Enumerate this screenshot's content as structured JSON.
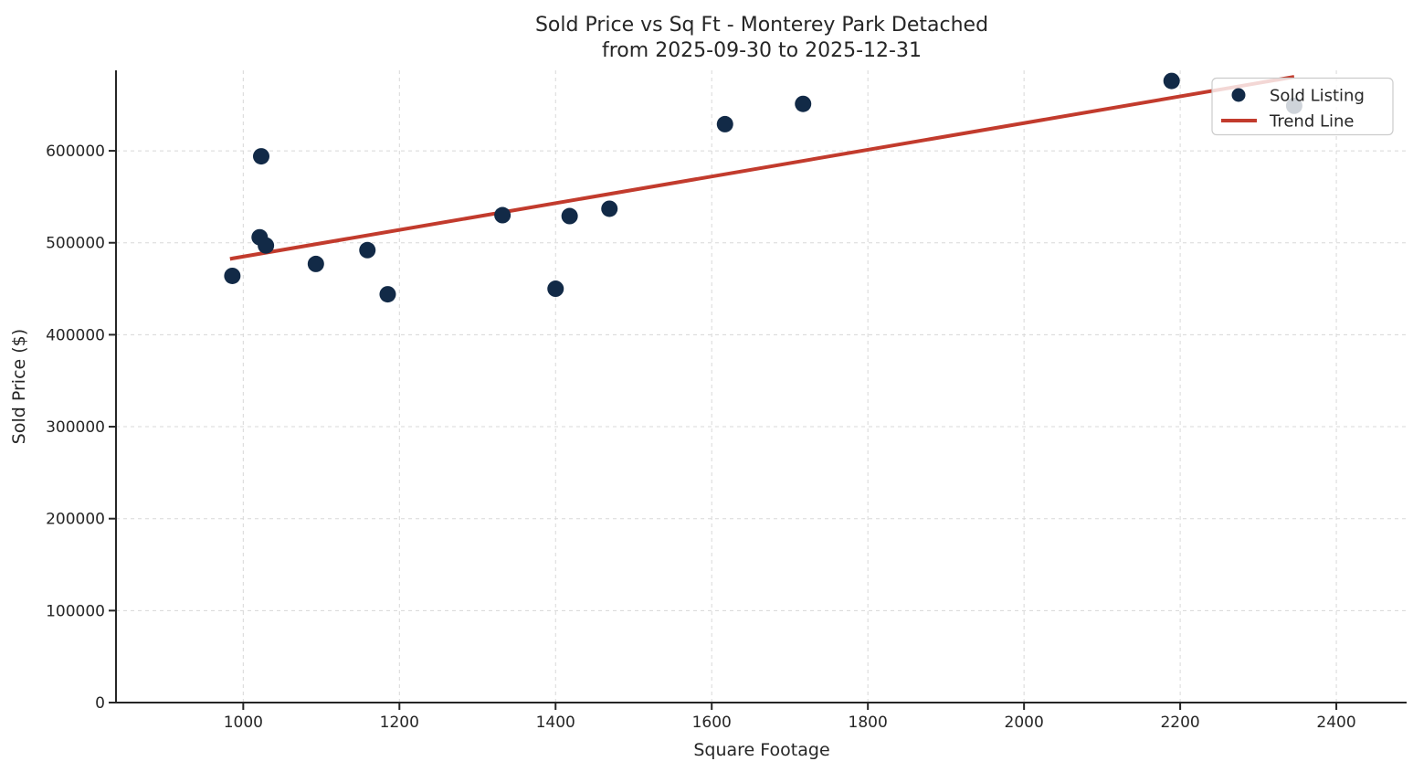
{
  "chart_data": {
    "type": "scatter",
    "title": "Sold Price vs Sq Ft - Monterey Park Detached",
    "subtitle": "from 2025-09-30 to 2025-12-31",
    "xlabel": "Square Footage",
    "ylabel": "Sold Price ($)",
    "xlim": [
      837,
      2490
    ],
    "ylim": [
      0,
      687500
    ],
    "x_ticks": [
      1000,
      1200,
      1400,
      1600,
      1800,
      2000,
      2200,
      2400
    ],
    "y_ticks": [
      0,
      100000,
      200000,
      300000,
      400000,
      500000,
      600000
    ],
    "grid": true,
    "grid_style": "dashed",
    "legend_position": "upper right",
    "series": [
      {
        "name": "Sold Listing",
        "type": "scatter",
        "color": "#122a47",
        "marker_radius": 9,
        "points": [
          [
            986,
            464000
          ],
          [
            1023,
            594000
          ],
          [
            1021,
            506000
          ],
          [
            1029,
            497000
          ],
          [
            1093,
            477000
          ],
          [
            1159,
            492000
          ],
          [
            1185,
            444000
          ],
          [
            1332,
            530000
          ],
          [
            1400,
            450000
          ],
          [
            1418,
            529000
          ],
          [
            1469,
            537000
          ],
          [
            1617,
            629000
          ],
          [
            1717,
            651000
          ],
          [
            2189,
            676000
          ],
          [
            2346,
            649000
          ]
        ]
      },
      {
        "name": "Trend Line",
        "type": "line",
        "color": "#c23b2d",
        "line_width": 4,
        "points": [
          [
            983,
            482500
          ],
          [
            2346,
            680400
          ]
        ]
      }
    ],
    "legend": {
      "entries": [
        {
          "label": "Sold Listing",
          "glyph": "marker",
          "color": "#122a47"
        },
        {
          "label": "Trend Line",
          "glyph": "line",
          "color": "#c23b2d"
        }
      ],
      "background": "rgba(255,255,255,0.8)",
      "border_color": "#cccccc"
    },
    "colors": {
      "axis": "#262626",
      "grid": "#d8d8d8",
      "background": "#ffffff"
    }
  }
}
